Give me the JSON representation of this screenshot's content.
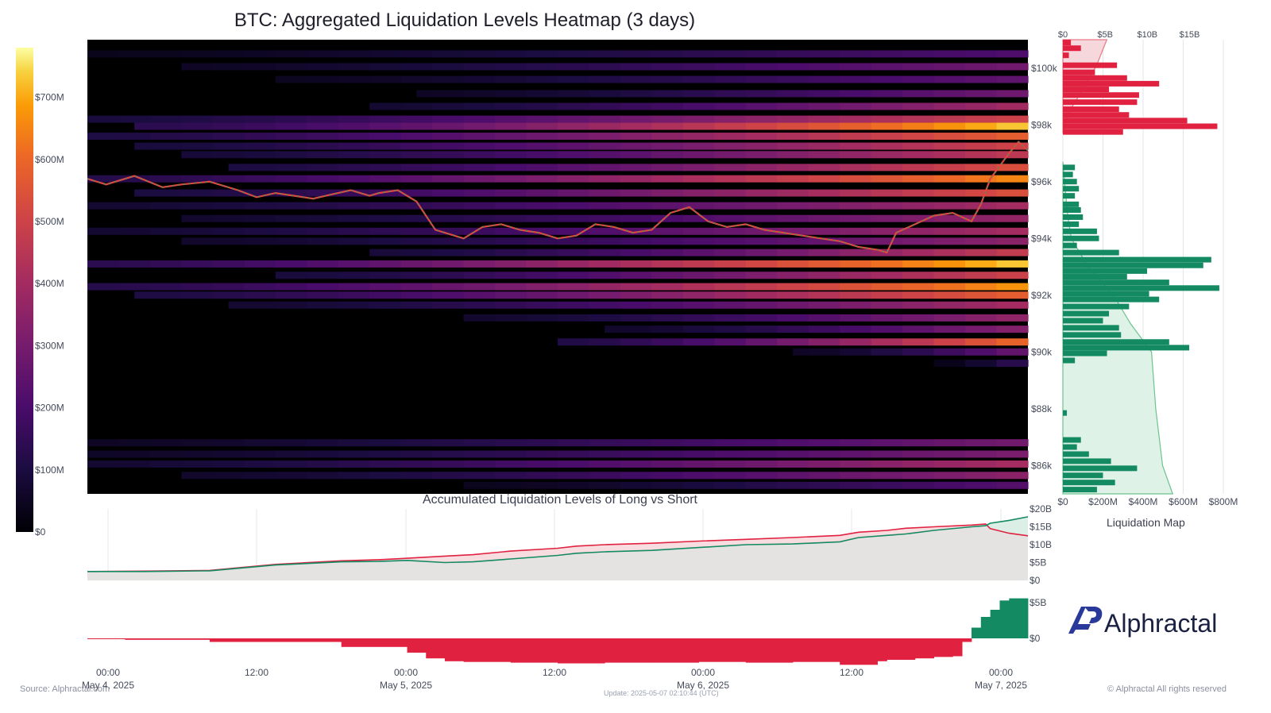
{
  "title": "BTC: Aggregated Liquidation Levels Heatmap (3 days)",
  "subtitle": "Accumulated Liquidation Levels of Long vs Short",
  "liquidation_map_label": "Liquidation Map",
  "brand": "Alphractal",
  "source": "Source: Alphractal.com",
  "update": "Update: 2025-05-07 02:10:44 (UTC)",
  "rights": "© Alphractal All rights reserved",
  "colors": {
    "short": "#e0213f",
    "long": "#138a62",
    "heat_low": "#000000",
    "heat_high": "#fcfdbf"
  },
  "chart_data": [
    {
      "type": "heatmap",
      "title": "BTC: Aggregated Liquidation Levels Heatmap (3 days)",
      "colorbar": {
        "labels": [
          "$0",
          "$100M",
          "$200M",
          "$300M",
          "$400M",
          "$500M",
          "$600M",
          "$700M"
        ],
        "range": [
          0,
          780
        ]
      },
      "y_ticks": [
        "$86k",
        "$88k",
        "$90k",
        "$92k",
        "$94k",
        "$96k",
        "$98k",
        "$100k"
      ],
      "x_ticks": [
        {
          "time": "00:00",
          "date": "May 4, 2025"
        },
        {
          "time": "12:00",
          "date": ""
        },
        {
          "time": "00:00",
          "date": "May 5, 2025"
        },
        {
          "time": "12:00",
          "date": ""
        },
        {
          "time": "00:00",
          "date": "May 6, 2025"
        },
        {
          "time": "12:00",
          "date": ""
        },
        {
          "time": "00:00",
          "date": "May 7, 2025"
        }
      ],
      "ylim": [
        85000,
        101000
      ],
      "bands": [
        {
          "price": 100500,
          "start": 0.0,
          "peak": 220
        },
        {
          "price": 100050,
          "start": 0.1,
          "peak": 300
        },
        {
          "price": 99600,
          "start": 0.2,
          "peak": 260
        },
        {
          "price": 99100,
          "start": 0.35,
          "peak": 300
        },
        {
          "price": 98650,
          "start": 0.3,
          "peak": 420
        },
        {
          "price": 98200,
          "start": 0.0,
          "peak": 520
        },
        {
          "price": 97950,
          "start": 0.05,
          "peak": 760
        },
        {
          "price": 97600,
          "start": 0.0,
          "peak": 600
        },
        {
          "price": 97250,
          "start": 0.05,
          "peak": 520
        },
        {
          "price": 96950,
          "start": 0.1,
          "peak": 480
        },
        {
          "price": 96500,
          "start": 0.15,
          "peak": 560
        },
        {
          "price": 96100,
          "start": 0.0,
          "peak": 680
        },
        {
          "price": 95600,
          "start": 0.05,
          "peak": 560
        },
        {
          "price": 95150,
          "start": 0.0,
          "peak": 420
        },
        {
          "price": 94700,
          "start": 0.1,
          "peak": 380
        },
        {
          "price": 94250,
          "start": 0.0,
          "peak": 420
        },
        {
          "price": 93900,
          "start": 0.1,
          "peak": 360
        },
        {
          "price": 93500,
          "start": 0.3,
          "peak": 500
        },
        {
          "price": 93100,
          "start": 0.0,
          "peak": 760
        },
        {
          "price": 92700,
          "start": 0.2,
          "peak": 520
        },
        {
          "price": 92300,
          "start": 0.0,
          "peak": 700
        },
        {
          "price": 92000,
          "start": 0.05,
          "peak": 600
        },
        {
          "price": 91650,
          "start": 0.15,
          "peak": 420
        },
        {
          "price": 91200,
          "start": 0.4,
          "peak": 380
        },
        {
          "price": 90800,
          "start": 0.55,
          "peak": 360
        },
        {
          "price": 90350,
          "start": 0.5,
          "peak": 640
        },
        {
          "price": 90000,
          "start": 0.75,
          "peak": 300
        },
        {
          "price": 89600,
          "start": 0.9,
          "peak": 200
        },
        {
          "price": 86800,
          "start": 0.0,
          "peak": 300
        },
        {
          "price": 86400,
          "start": 0.0,
          "peak": 320
        },
        {
          "price": 86050,
          "start": 0.0,
          "peak": 420
        },
        {
          "price": 85650,
          "start": 0.1,
          "peak": 360
        },
        {
          "price": 85300,
          "start": 0.4,
          "peak": 240
        }
      ],
      "price_series": {
        "name": "",
        "t": [
          0,
          0.02,
          0.05,
          0.08,
          0.1,
          0.13,
          0.16,
          0.18,
          0.2,
          0.22,
          0.24,
          0.26,
          0.28,
          0.3,
          0.31,
          0.33,
          0.35,
          0.36,
          0.37,
          0.38,
          0.4,
          0.42,
          0.44,
          0.46,
          0.48,
          0.5,
          0.52,
          0.54,
          0.56,
          0.58,
          0.6,
          0.62,
          0.64,
          0.66,
          0.68,
          0.7,
          0.72,
          0.74,
          0.76,
          0.78,
          0.8,
          0.82,
          0.84,
          0.85,
          0.86,
          0.88,
          0.9,
          0.92,
          0.94,
          0.95,
          0.96,
          0.98,
          0.99,
          1.0
        ],
        "price": [
          96100,
          95900,
          96200,
          95800,
          95900,
          96000,
          95700,
          95450,
          95600,
          95500,
          95400,
          95550,
          95700,
          95500,
          95600,
          95700,
          95300,
          94800,
          94300,
          94200,
          94000,
          94400,
          94500,
          94300,
          94200,
          94000,
          94100,
          94500,
          94400,
          94200,
          94300,
          94900,
          95100,
          94600,
          94400,
          94500,
          94300,
          94200,
          94100,
          94000,
          93900,
          93700,
          93600,
          93500,
          94200,
          94500,
          94800,
          94900,
          94600,
          95200,
          96100,
          97000,
          97400,
          97100
        ]
      }
    },
    {
      "type": "bar",
      "title": "Liquidation Map",
      "x_ticks_bottom": [
        "$0",
        "$200M",
        "$400M",
        "$600M",
        "$800M"
      ],
      "x_ticks_top": [
        "$0",
        "$5B",
        "$10B",
        "$15B"
      ],
      "short_bars": [
        {
          "price": 100900,
          "value": 40
        },
        {
          "price": 100700,
          "value": 90
        },
        {
          "price": 100450,
          "value": 30
        },
        {
          "price": 100100,
          "value": 270
        },
        {
          "price": 99850,
          "value": 160
        },
        {
          "price": 99650,
          "value": 320
        },
        {
          "price": 99450,
          "value": 480
        },
        {
          "price": 99250,
          "value": 230
        },
        {
          "price": 99050,
          "value": 380
        },
        {
          "price": 98800,
          "value": 370
        },
        {
          "price": 98550,
          "value": 280
        },
        {
          "price": 98350,
          "value": 330
        },
        {
          "price": 98150,
          "value": 620
        },
        {
          "price": 97950,
          "value": 770
        },
        {
          "price": 97750,
          "value": 300
        }
      ],
      "long_bars": [
        {
          "price": 96500,
          "value": 60
        },
        {
          "price": 96250,
          "value": 50
        },
        {
          "price": 96000,
          "value": 70
        },
        {
          "price": 95750,
          "value": 80
        },
        {
          "price": 95500,
          "value": 60
        },
        {
          "price": 95200,
          "value": 80
        },
        {
          "price": 95000,
          "value": 90
        },
        {
          "price": 94750,
          "value": 100
        },
        {
          "price": 94500,
          "value": 80
        },
        {
          "price": 94250,
          "value": 170
        },
        {
          "price": 94000,
          "value": 180
        },
        {
          "price": 93750,
          "value": 70
        },
        {
          "price": 93500,
          "value": 280
        },
        {
          "price": 93250,
          "value": 740
        },
        {
          "price": 93050,
          "value": 700
        },
        {
          "price": 92850,
          "value": 420
        },
        {
          "price": 92650,
          "value": 320
        },
        {
          "price": 92450,
          "value": 530
        },
        {
          "price": 92250,
          "value": 780
        },
        {
          "price": 92050,
          "value": 430
        },
        {
          "price": 91850,
          "value": 480
        },
        {
          "price": 91600,
          "value": 330
        },
        {
          "price": 91350,
          "value": 230
        },
        {
          "price": 91100,
          "value": 200
        },
        {
          "price": 90850,
          "value": 280
        },
        {
          "price": 90600,
          "value": 290
        },
        {
          "price": 90350,
          "value": 530
        },
        {
          "price": 90150,
          "value": 630
        },
        {
          "price": 89950,
          "value": 220
        },
        {
          "price": 89700,
          "value": 60
        },
        {
          "price": 87850,
          "value": 20
        },
        {
          "price": 86900,
          "value": 90
        },
        {
          "price": 86650,
          "value": 70
        },
        {
          "price": 86400,
          "value": 130
        },
        {
          "price": 86150,
          "value": 240
        },
        {
          "price": 85900,
          "value": 370
        },
        {
          "price": 85650,
          "value": 200
        },
        {
          "price": 85400,
          "value": 260
        },
        {
          "price": 85150,
          "value": 170
        }
      ],
      "short_cumulative": {
        "price": [
          97700,
          98500,
          99300,
          100100,
          101000
        ],
        "value_billion": [
          0,
          0.8,
          2.5,
          4.0,
          5.2
        ]
      },
      "long_cumulative": {
        "price": [
          96700,
          95000,
          94000,
          93000,
          92000,
          91000,
          90000,
          88000,
          86000,
          85000
        ],
        "value_billion": [
          0,
          0.5,
          1.0,
          3.0,
          6.0,
          8.0,
          10.5,
          11.0,
          11.8,
          13.0
        ]
      }
    },
    {
      "type": "area",
      "title": "Accumulated Liquidation Levels of Long vs Short",
      "y_ticks": [
        "$0",
        "$5B",
        "$10B",
        "$15B",
        "$20B"
      ],
      "ylim": [
        0,
        20
      ],
      "x": [
        0,
        0.06,
        0.13,
        0.2,
        0.27,
        0.31,
        0.34,
        0.38,
        0.41,
        0.45,
        0.5,
        0.52,
        0.55,
        0.6,
        0.65,
        0.7,
        0.75,
        0.8,
        0.82,
        0.85,
        0.87,
        0.9,
        0.94,
        0.955,
        0.96,
        0.98,
        1.0
      ],
      "series": [
        {
          "name": "",
          "color": "#e0213f",
          "values": [
            2.5,
            2.6,
            2.8,
            4.5,
            5.5,
            5.8,
            6.2,
            6.8,
            7.2,
            8.2,
            9.0,
            9.6,
            10.0,
            10.4,
            11.0,
            11.5,
            12.0,
            12.6,
            13.5,
            14.0,
            14.6,
            15.0,
            15.5,
            15.8,
            14.5,
            13.2,
            12.5
          ]
        },
        {
          "name": "",
          "color": "#138a62",
          "values": [
            2.5,
            2.5,
            2.7,
            4.3,
            5.2,
            5.3,
            5.6,
            5.0,
            5.2,
            6.0,
            7.0,
            7.6,
            8.0,
            8.4,
            9.2,
            10.0,
            10.2,
            10.8,
            12.0,
            12.6,
            13.0,
            14.0,
            15.0,
            15.3,
            16.0,
            16.8,
            17.8
          ]
        }
      ]
    },
    {
      "type": "bar",
      "title": "",
      "y_ticks": [
        "$0",
        "$5B"
      ],
      "x": [
        0,
        0.04,
        0.13,
        0.27,
        0.34,
        0.36,
        0.38,
        0.4,
        0.45,
        0.5,
        0.55,
        0.6,
        0.65,
        0.7,
        0.75,
        0.8,
        0.84,
        0.85,
        0.88,
        0.9,
        0.92,
        0.93,
        0.94,
        0.95,
        0.96,
        0.97,
        0.98,
        1.0
      ],
      "values": [
        0,
        -0.05,
        -0.2,
        -0.5,
        -1.2,
        -2.0,
        -2.8,
        -3.2,
        -3.3,
        -3.4,
        -3.5,
        -3.4,
        -3.4,
        -3.3,
        -3.4,
        -3.3,
        -3.7,
        -3.2,
        -3.0,
        -2.8,
        -2.6,
        -2.5,
        -0.5,
        1.5,
        3.0,
        4.0,
        5.3,
        5.6
      ]
    }
  ]
}
